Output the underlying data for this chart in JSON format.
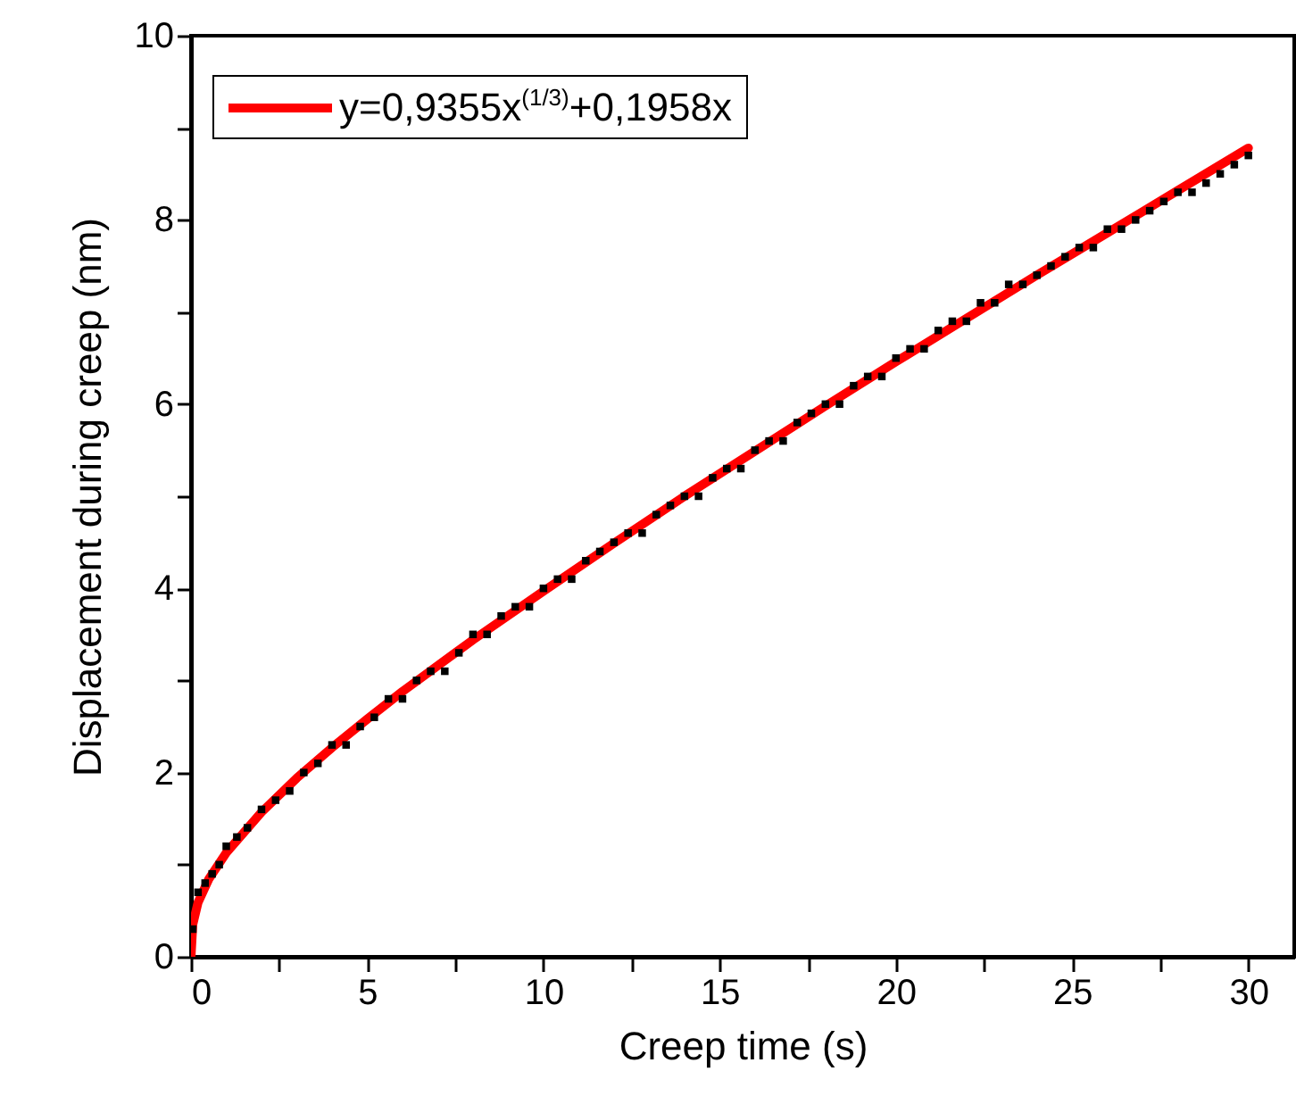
{
  "chart_data": {
    "type": "scatter",
    "xlabel": "Creep time (s)",
    "ylabel": "Displacement during creep (nm)",
    "xlim": [
      0,
      31.3
    ],
    "xticks": [
      0,
      {
        "value": 2.5,
        "label": null
      },
      5,
      {
        "value": 7.5,
        "label": null
      },
      10,
      {
        "value": 12.5,
        "label": null
      },
      15,
      {
        "value": 17.5,
        "label": null
      },
      20,
      {
        "value": 22.5,
        "label": null
      },
      25,
      {
        "value": 27.5,
        "label": null
      },
      30
    ],
    "ylim": [
      0,
      10
    ],
    "yticks": [
      0,
      {
        "value": 1,
        "label": null
      },
      2,
      {
        "value": 3,
        "label": null
      },
      4,
      {
        "value": 5,
        "label": null
      },
      6,
      {
        "value": 7,
        "label": null
      },
      8,
      {
        "value": 9,
        "label": null
      },
      10
    ],
    "grid": false,
    "legend": "top left",
    "marker": "square",
    "series": [
      {
        "color": "#000000",
        "x": [
          0.05,
          0.2,
          0.4,
          0.6,
          0.8,
          1,
          1.3,
          1.6,
          2,
          2.4,
          2.8,
          3.2,
          3.6,
          4,
          4.4,
          4.8,
          5.2,
          5.6,
          6,
          6.4,
          6.8,
          7.2,
          7.6,
          8,
          8.4,
          8.8,
          9.2,
          9.6,
          10,
          10.4,
          10.8,
          11.2,
          11.6,
          12,
          12.4,
          12.8,
          13.2,
          13.6,
          14,
          14.4,
          14.8,
          15.2,
          15.6,
          16,
          16.4,
          16.8,
          17.2,
          17.6,
          18,
          18.4,
          18.8,
          19.2,
          19.6,
          20,
          20.4,
          20.8,
          21.2,
          21.6,
          22,
          22.4,
          22.8,
          23.2,
          23.6,
          24,
          24.4,
          24.8,
          25.2,
          25.6,
          26,
          26.4,
          26.8,
          27.2,
          27.6,
          28,
          28.4,
          28.8,
          29.2,
          29.6,
          30
        ],
        "values": [
          0.3,
          0.7,
          0.8,
          0.9,
          1.0,
          1.2,
          1.3,
          1.4,
          1.6,
          1.7,
          1.8,
          2.0,
          2.1,
          2.3,
          2.3,
          2.5,
          2.6,
          2.8,
          2.8,
          3.0,
          3.1,
          3.1,
          3.3,
          3.5,
          3.5,
          3.7,
          3.8,
          3.8,
          4.0,
          4.1,
          4.1,
          4.3,
          4.4,
          4.5,
          4.6,
          4.6,
          4.8,
          4.9,
          5.0,
          5.0,
          5.2,
          5.3,
          5.3,
          5.5,
          5.6,
          5.6,
          5.8,
          5.9,
          6.0,
          6.0,
          6.2,
          6.3,
          6.3,
          6.5,
          6.6,
          6.6,
          6.8,
          6.9,
          6.9,
          7.1,
          7.1,
          7.3,
          7.3,
          7.4,
          7.5,
          7.6,
          7.7,
          7.7,
          7.9,
          7.9,
          8.0,
          8.1,
          8.2,
          8.3,
          8.3,
          8.4,
          8.5,
          8.6,
          8.7
        ]
      },
      {
        "type": "line",
        "name": "y=0,9355x$^{(1/3)}$+0,1958x",
        "color": "#ff0000",
        "marker": "none",
        "x": [
          0,
          0.05,
          0.2,
          0.5,
          1,
          2,
          3,
          4,
          5,
          6,
          8,
          10,
          12,
          14,
          16,
          18,
          20,
          22,
          24,
          26,
          28,
          30
        ],
        "values": [
          0,
          0.35,
          0.59,
          0.84,
          1.13,
          1.57,
          1.94,
          2.27,
          2.58,
          2.88,
          3.44,
          3.97,
          4.49,
          5.0,
          5.49,
          5.98,
          6.46,
          6.93,
          7.4,
          7.86,
          8.32,
          8.78
        ]
      }
    ]
  }
}
